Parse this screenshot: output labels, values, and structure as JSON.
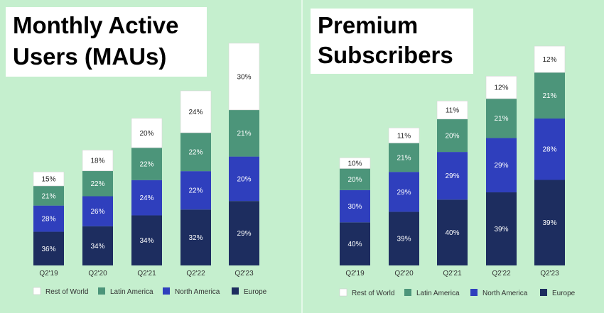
{
  "colors": {
    "background": "#c5efce",
    "Rest of World": "#ffffff",
    "Latin America": "#4c957a",
    "North America": "#2f3fbd",
    "Europe": "#1d2d5f"
  },
  "legend": [
    "Rest of World",
    "Latin America",
    "North America",
    "Europe"
  ],
  "chart_data": [
    {
      "type": "bar",
      "stacked": true,
      "title_lines": [
        "Monthly Active",
        "Users (MAUs)"
      ],
      "categories": [
        "Q2'19",
        "Q2'20",
        "Q2'21",
        "Q2'22",
        "Q2'23"
      ],
      "totals_relative": [
        232,
        286,
        365,
        433,
        551
      ],
      "series": [
        {
          "name": "Europe",
          "values": [
            36,
            34,
            34,
            32,
            29
          ]
        },
        {
          "name": "North America",
          "values": [
            28,
            26,
            24,
            22,
            20
          ]
        },
        {
          "name": "Latin America",
          "values": [
            21,
            22,
            22,
            22,
            21
          ]
        },
        {
          "name": "Rest of World",
          "values": [
            15,
            18,
            20,
            24,
            30
          ]
        }
      ],
      "legend_position": "bottom"
    },
    {
      "type": "bar",
      "stacked": true,
      "title_lines": [
        "Premium",
        "Subscribers"
      ],
      "categories": [
        "Q2'19",
        "Q2'20",
        "Q2'21",
        "Q2'22",
        "Q2'23"
      ],
      "totals_relative": [
        108,
        138,
        165,
        188,
        220
      ],
      "series": [
        {
          "name": "Europe",
          "values": [
            40,
            39,
            40,
            39,
            39
          ]
        },
        {
          "name": "North America",
          "values": [
            30,
            29,
            29,
            29,
            28
          ]
        },
        {
          "name": "Latin America",
          "values": [
            20,
            21,
            20,
            21,
            21
          ]
        },
        {
          "name": "Rest of World",
          "values": [
            10,
            11,
            11,
            12,
            12
          ]
        }
      ],
      "legend_position": "bottom"
    }
  ]
}
